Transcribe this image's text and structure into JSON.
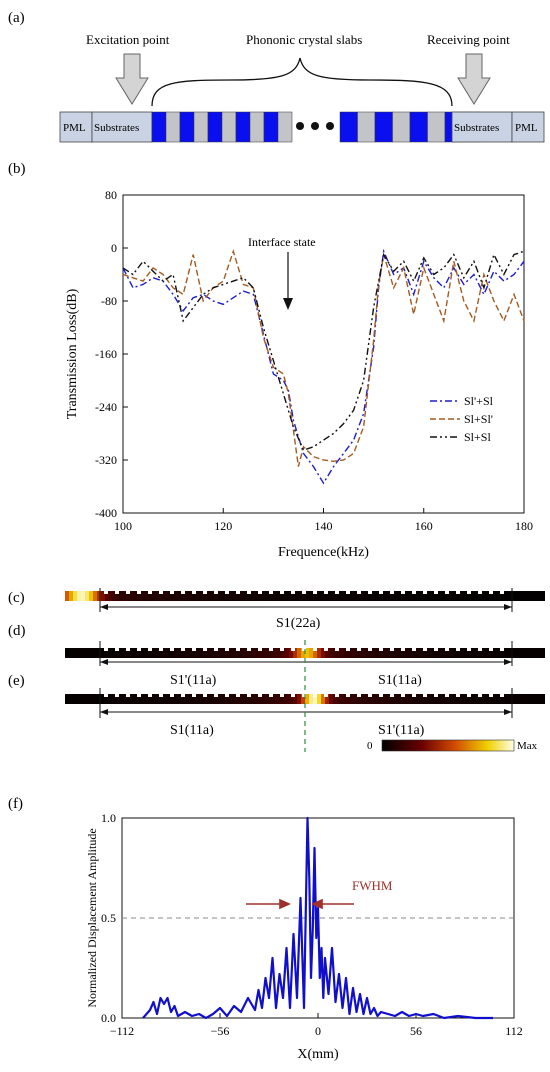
{
  "panels": {
    "a": {
      "label": "(a)",
      "excitation": "Excitation point",
      "slabs": "Phononic crystal slabs",
      "receiving": "Receiving point",
      "pml_left": "PML",
      "substrate_left": "Substrates",
      "substrate_right": "Substrates",
      "pml_right": "PML",
      "colors": {
        "blue": "#0a0ff0",
        "grey": "#c2c4c8",
        "substrate": "#c9d3e3"
      }
    },
    "b": {
      "label": "(b)",
      "annotation": "Interface state"
    },
    "c": {
      "label": "(c)",
      "span": "S1(22a)"
    },
    "d": {
      "label": "(d)",
      "left": "S1'(11a)",
      "right": "S1(11a)"
    },
    "e": {
      "label": "(e)",
      "left": "S1(11a)",
      "right": "S1'(11a)"
    },
    "colorbar": {
      "min": "0",
      "max": "Max"
    },
    "f": {
      "label": "(f)",
      "annotation": "FWHM"
    }
  },
  "chart_data": [
    {
      "type": "line",
      "panel": "b",
      "xlabel": "Frequence(kHz)",
      "ylabel": "Transmission Loss(dB)",
      "xlim": [
        100,
        180
      ],
      "ylim": [
        -400,
        80
      ],
      "xticks": [
        100,
        120,
        140,
        160,
        180
      ],
      "yticks": [
        80,
        0,
        -80,
        -160,
        -240,
        -320,
        -400
      ],
      "legend_position": "right",
      "series": [
        {
          "name": "Sl'+Sl",
          "color": "#1c1cd0",
          "dash": "dashdot",
          "x": [
            100,
            102,
            104,
            106,
            108,
            110,
            112,
            114,
            116,
            118,
            120,
            122,
            124,
            126,
            128,
            130,
            132,
            133,
            134,
            135,
            136,
            138,
            140,
            142,
            144,
            146,
            148,
            150,
            151,
            152,
            154,
            156,
            158,
            160,
            162,
            164,
            166,
            168,
            170,
            172,
            174,
            176,
            178,
            180
          ],
          "y": [
            -30,
            -60,
            -55,
            -45,
            -50,
            -70,
            -95,
            -75,
            -70,
            -80,
            -85,
            -75,
            -65,
            -70,
            -130,
            -190,
            -200,
            -215,
            -260,
            -285,
            -310,
            -330,
            -355,
            -330,
            -310,
            -290,
            -250,
            -150,
            -60,
            -5,
            -40,
            -30,
            -70,
            -20,
            -45,
            -60,
            -30,
            -55,
            -40,
            -70,
            -35,
            -50,
            -40,
            -20
          ]
        },
        {
          "name": "Sl+Sl'",
          "color": "#a55a1e",
          "dash": "dash",
          "x": [
            100,
            102,
            104,
            106,
            108,
            110,
            112,
            114,
            116,
            118,
            120,
            122,
            124,
            126,
            128,
            130,
            132,
            133,
            134,
            135,
            136,
            138,
            140,
            142,
            144,
            146,
            148,
            150,
            151,
            152,
            154,
            156,
            158,
            160,
            162,
            164,
            166,
            168,
            170,
            172,
            174,
            176,
            178,
            180
          ],
          "y": [
            -40,
            -45,
            -50,
            -30,
            -40,
            -60,
            -70,
            -10,
            -80,
            -60,
            -50,
            -5,
            -55,
            -60,
            -135,
            -180,
            -190,
            -220,
            -275,
            -330,
            -300,
            -315,
            -320,
            -322,
            -320,
            -310,
            -270,
            -140,
            -55,
            -10,
            -60,
            -30,
            -100,
            -30,
            -70,
            -110,
            -20,
            -80,
            -110,
            -40,
            -80,
            -110,
            -70,
            -110
          ]
        },
        {
          "name": "Sl+Sl",
          "color": "#111111",
          "dash": "dashdotdot",
          "x": [
            100,
            102,
            104,
            106,
            108,
            110,
            112,
            114,
            116,
            118,
            120,
            122,
            124,
            126,
            128,
            130,
            132,
            134,
            136,
            138,
            140,
            142,
            144,
            146,
            148,
            150,
            152,
            154,
            156,
            158,
            160,
            162,
            164,
            166,
            168,
            170,
            172,
            174,
            176,
            178,
            180
          ],
          "y": [
            -30,
            -40,
            -20,
            -35,
            -50,
            -40,
            -110,
            -90,
            -70,
            -60,
            -55,
            -50,
            -45,
            -60,
            -120,
            -170,
            -220,
            -270,
            -305,
            -300,
            -290,
            -280,
            -265,
            -245,
            -200,
            -90,
            -10,
            -35,
            -20,
            -50,
            -15,
            -40,
            -30,
            -10,
            -45,
            -20,
            -60,
            -10,
            -40,
            -10,
            -5
          ]
        }
      ]
    },
    {
      "type": "line",
      "panel": "f",
      "xlabel": "X(mm)",
      "ylabel": "Normalized Displacement Amplitude",
      "xlim": [
        -112,
        112
      ],
      "ylim": [
        0,
        1
      ],
      "xticks": [
        -112,
        -56,
        0,
        56,
        112
      ],
      "yticks": [
        0.0,
        0.5,
        1.0
      ],
      "ytick_labels": [
        "0.0",
        "0.5",
        "1.0"
      ],
      "xtick_labels": [
        "−112",
        "−56",
        "0",
        "56",
        "112"
      ],
      "reference_line": 0.5,
      "series": [
        {
          "color": "#1010cc",
          "x": [
            -100,
            -96,
            -94,
            -92,
            -90,
            -88,
            -86,
            -84,
            -82,
            -80,
            -76,
            -72,
            -68,
            -64,
            -60,
            -56,
            -52,
            -48,
            -44,
            -40,
            -36,
            -34,
            -32,
            -30,
            -28,
            -26,
            -24,
            -22,
            -20,
            -18,
            -16,
            -14,
            -12,
            -10,
            -8,
            -6,
            -5,
            -4,
            -3,
            -2,
            -1,
            0,
            1,
            2,
            3,
            4,
            6,
            8,
            10,
            12,
            14,
            16,
            18,
            20,
            22,
            24,
            26,
            28,
            30,
            32,
            34,
            36,
            40,
            44,
            48,
            52,
            56,
            60,
            66,
            72,
            80,
            90,
            100
          ],
          "y": [
            0.0,
            0.04,
            0.08,
            0.02,
            0.1,
            0.07,
            0.1,
            0.03,
            0.06,
            0.01,
            0.03,
            0.01,
            0.02,
            0.0,
            0.02,
            0.05,
            0.01,
            0.06,
            0.03,
            0.1,
            0.04,
            0.14,
            0.05,
            0.2,
            0.1,
            0.3,
            0.05,
            0.22,
            0.1,
            0.35,
            0.05,
            0.42,
            0.1,
            0.6,
            0.05,
            1.0,
            0.7,
            0.2,
            0.45,
            0.85,
            0.4,
            0.55,
            0.2,
            0.35,
            0.1,
            0.3,
            0.12,
            0.35,
            0.08,
            0.22,
            0.05,
            0.2,
            0.02,
            0.15,
            0.03,
            0.12,
            0.02,
            0.1,
            0.02,
            0.05,
            0.01,
            0.03,
            0.02,
            0.01,
            0.03,
            0.01,
            0.02,
            0.01,
            0.02,
            0.0,
            0.01,
            0.0,
            0.0
          ]
        }
      ]
    }
  ]
}
